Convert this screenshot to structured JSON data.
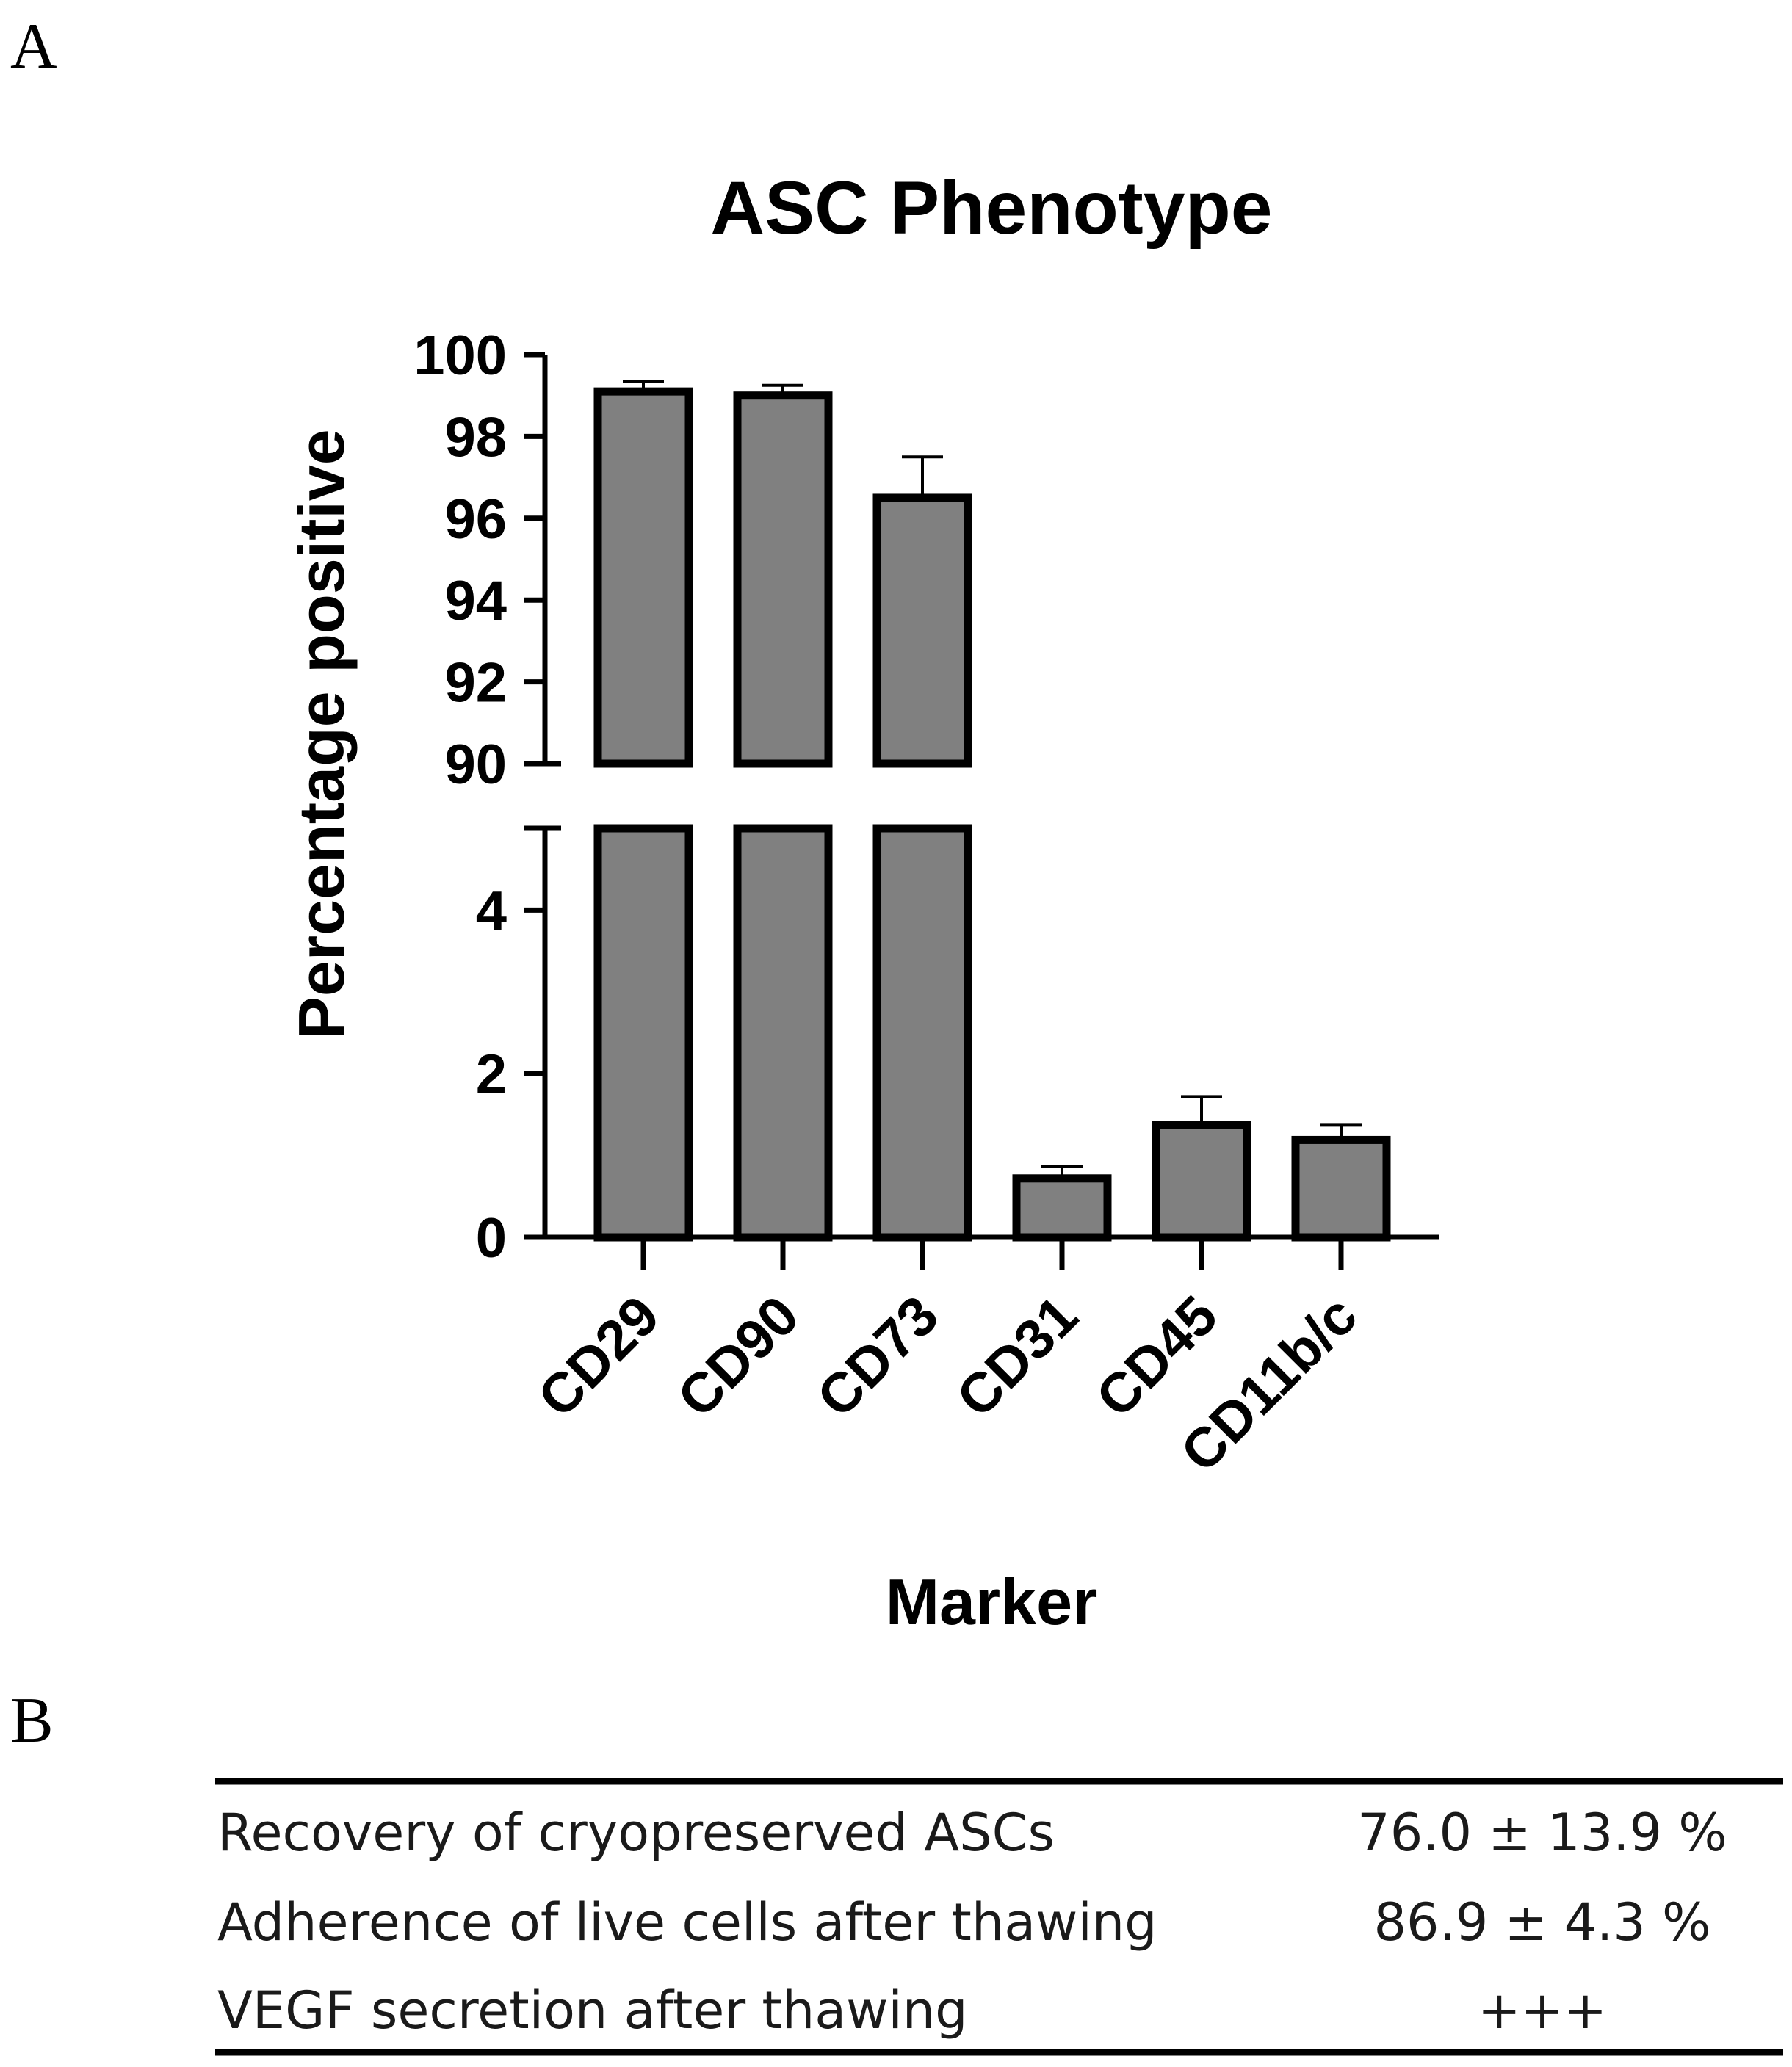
{
  "panels": {
    "a_label": "A",
    "b_label": "B"
  },
  "chart_data": {
    "type": "bar",
    "title": "ASC Phenotype",
    "xlabel": "Marker",
    "ylabel": "Percentage positive",
    "categories": [
      "CD29",
      "CD90",
      "CD73",
      "CD31",
      "CD45",
      "CD11b/c"
    ],
    "values": [
      99.1,
      99.0,
      96.5,
      0.72,
      1.37,
      1.19
    ],
    "error": [
      0.25,
      0.25,
      1.0,
      0.15,
      0.35,
      0.18
    ],
    "axis_break": {
      "lower_range": [
        0,
        5
      ],
      "upper_range": [
        90,
        100
      ]
    },
    "lower_ticks": [
      "0",
      "2",
      "4"
    ],
    "upper_ticks": [
      "90",
      "92",
      "94",
      "96",
      "98",
      "100"
    ],
    "grid": false,
    "bar_color": "#808080",
    "bar_edge_color": "#000000"
  },
  "table": {
    "rows": [
      {
        "label": "Recovery of cryopreserved ASCs",
        "value": "76.0 ± 13.9 %"
      },
      {
        "label": "Adherence of live cells after thawing",
        "value": "86.9 ± 4.3 %"
      },
      {
        "label": "VEGF secretion after thawing",
        "value": "+++"
      }
    ]
  }
}
